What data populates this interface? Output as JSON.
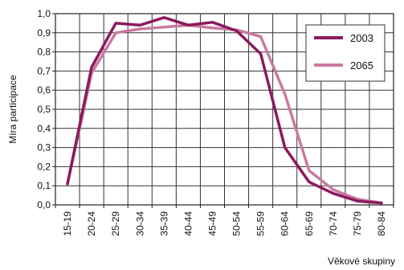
{
  "chart_data": {
    "type": "line",
    "title": "",
    "xlabel": "Věkové skupiny",
    "ylabel": "Míra participace",
    "categories": [
      "15-19",
      "20-24",
      "25-29",
      "30-34",
      "35-39",
      "40-44",
      "45-49",
      "50-54",
      "55-59",
      "60-64",
      "65-69",
      "70-74",
      "75-79",
      "80-84"
    ],
    "ylim": [
      0,
      1.0
    ],
    "yticks": [
      "0,0",
      "0,1",
      "0,2",
      "0,3",
      "0,4",
      "0,5",
      "0,6",
      "0,7",
      "0,8",
      "0,9",
      "1,0"
    ],
    "grid": true,
    "legend_position": "top-right",
    "series": [
      {
        "name": "2003",
        "color": "#8b1a5e",
        "values": [
          0.11,
          0.72,
          0.95,
          0.94,
          0.98,
          0.94,
          0.955,
          0.91,
          0.79,
          0.3,
          0.12,
          0.06,
          0.02,
          0.01
        ]
      },
      {
        "name": "2065",
        "color": "#c97aa0",
        "values": [
          0.11,
          0.69,
          0.9,
          0.92,
          0.93,
          0.94,
          0.925,
          0.915,
          0.88,
          0.58,
          0.18,
          0.08,
          0.03,
          0.01
        ]
      }
    ]
  }
}
